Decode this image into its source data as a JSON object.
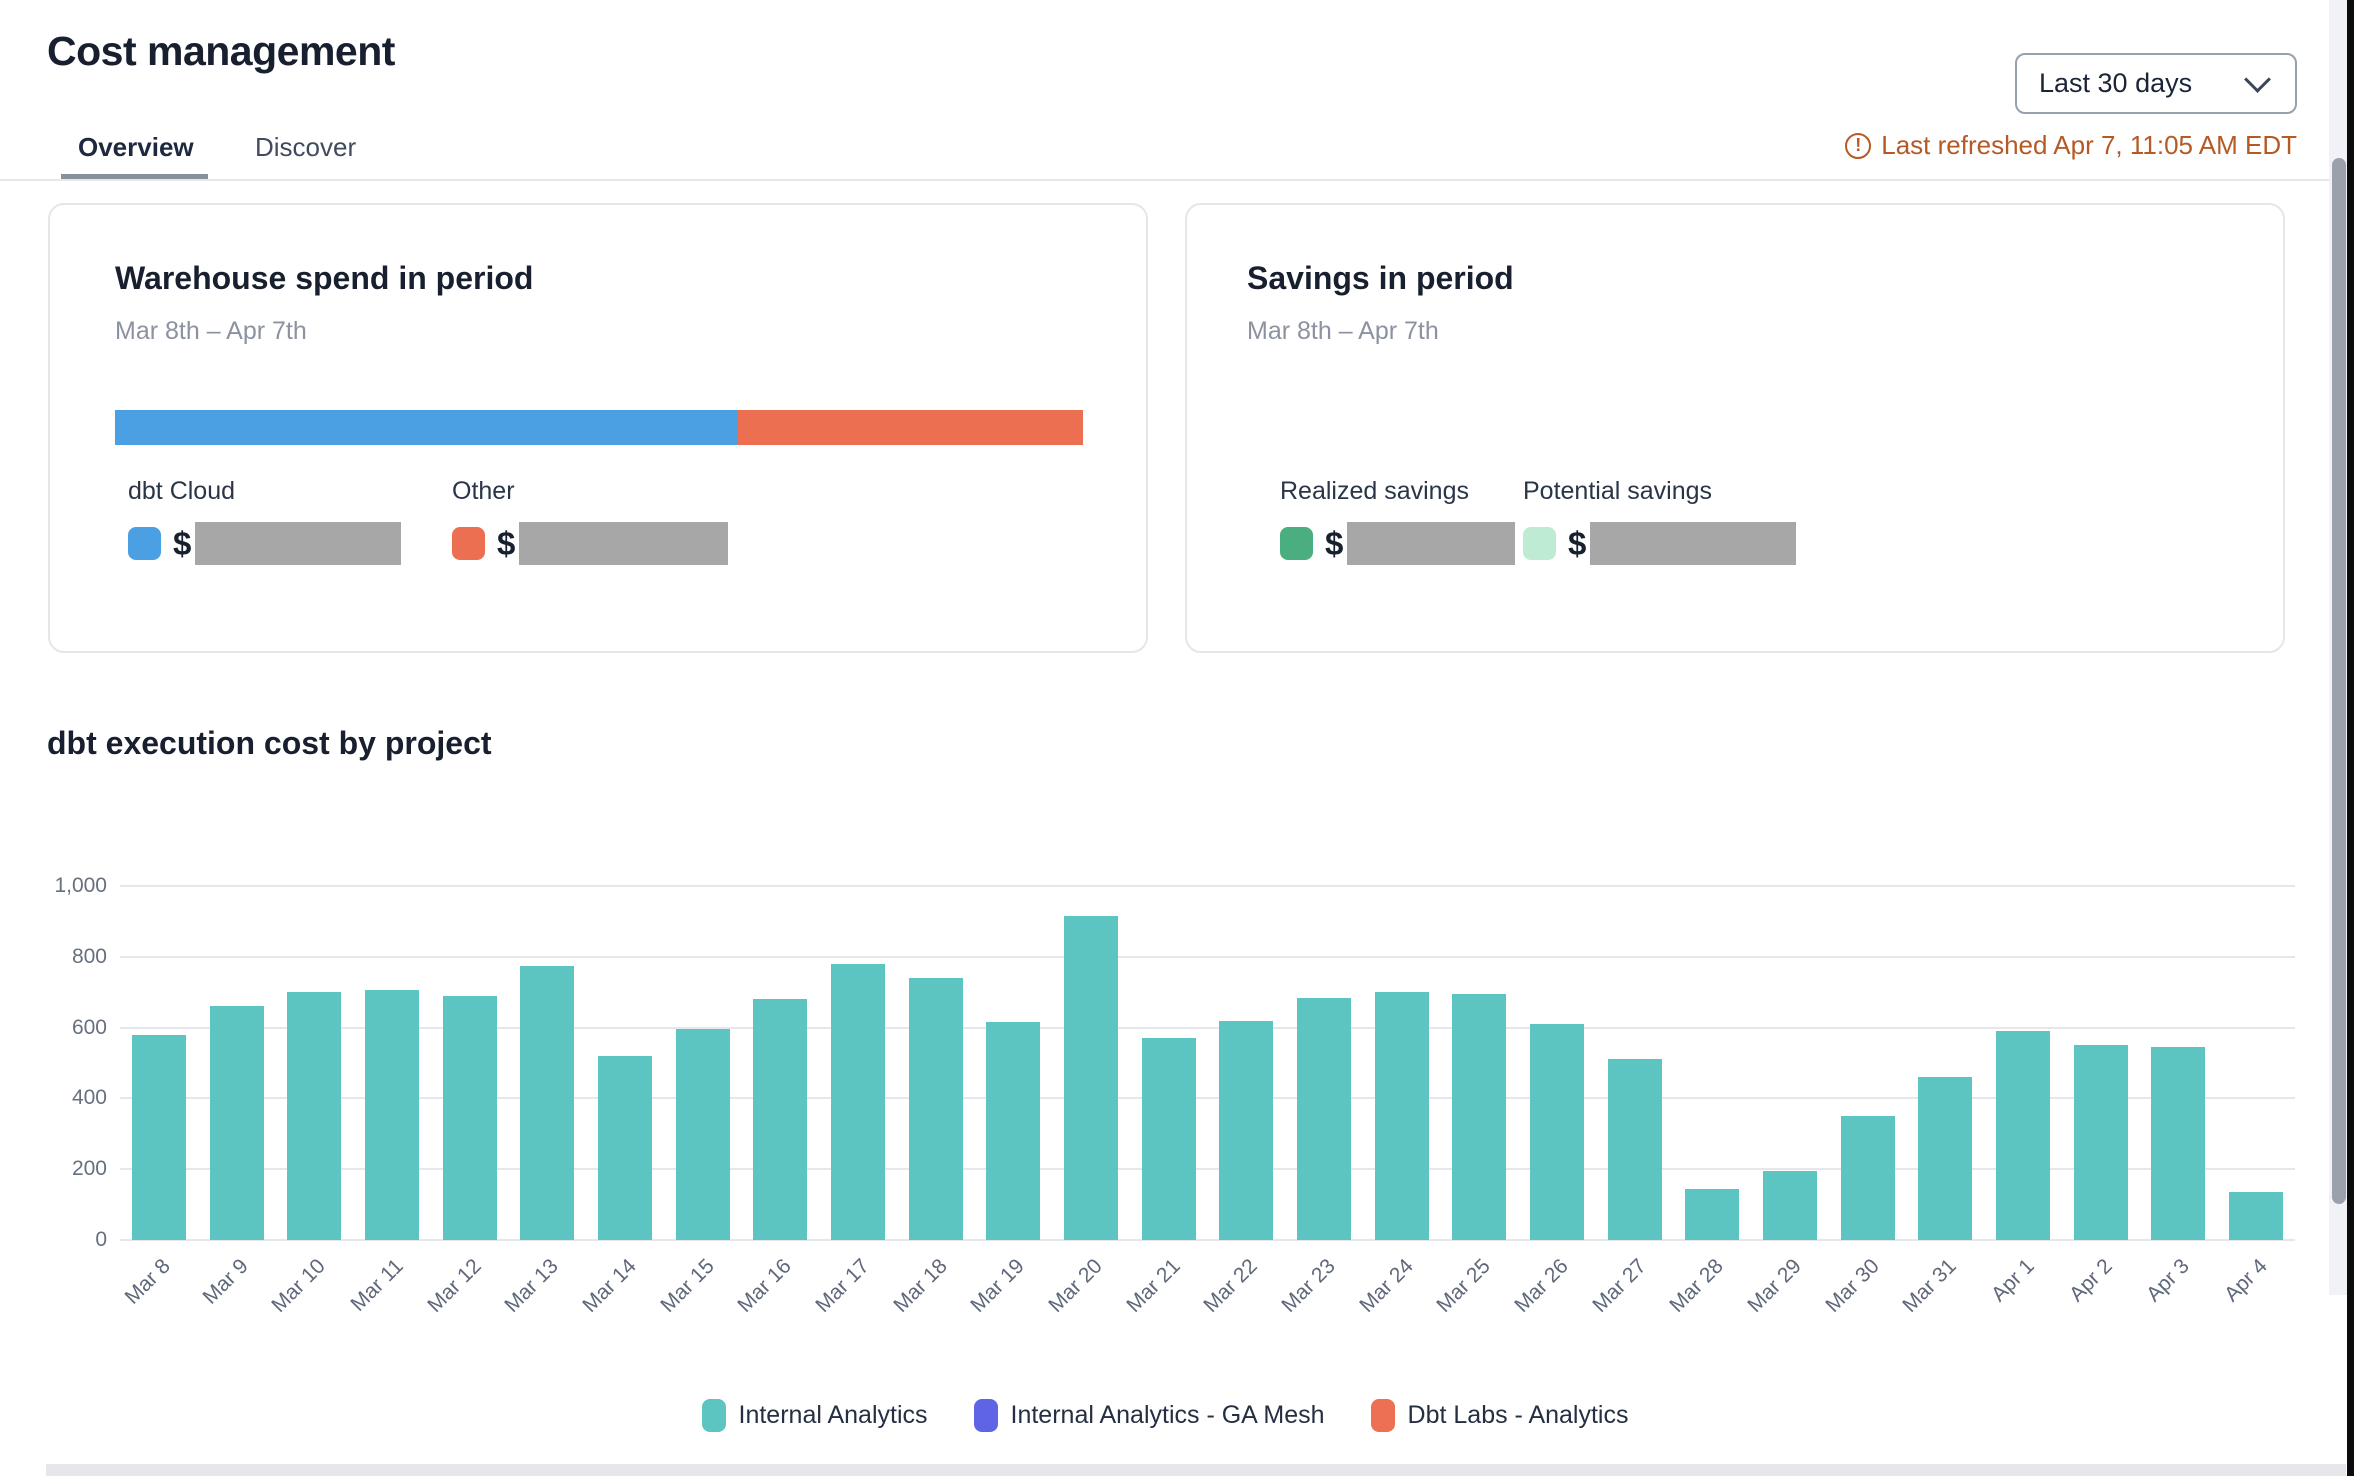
{
  "header": {
    "title": "Cost management",
    "tabs": [
      {
        "label": "Overview",
        "active": true
      },
      {
        "label": "Discover",
        "active": false
      }
    ],
    "date_range": {
      "value": "Last 30 days"
    },
    "last_refreshed": "Last refreshed Apr 7, 11:05 AM EDT",
    "last_refreshed_color": "#b55a25"
  },
  "currency_symbol": "$",
  "cards": {
    "warehouse": {
      "title": "Warehouse spend in period",
      "subtitle": "Mar 8th – Apr 7th",
      "segments": [
        {
          "label": "dbt Cloud",
          "color": "#4aa0e2",
          "pct": 64.4
        },
        {
          "label": "Other",
          "color": "#ed6f51",
          "pct": 35.6
        }
      ],
      "values_redacted": true
    },
    "savings": {
      "title": "Savings in period",
      "subtitle": "Mar 8th – Apr 7th",
      "items": [
        {
          "label": "Realized savings",
          "color": "#4bae80"
        },
        {
          "label": "Potential savings",
          "color": "#bdebd3"
        }
      ],
      "values_redacted": true
    }
  },
  "chart_data": {
    "type": "bar",
    "title": "dbt execution cost by project",
    "categories": [
      "Mar 8",
      "Mar 9",
      "Mar 10",
      "Mar 11",
      "Mar 12",
      "Mar 13",
      "Mar 14",
      "Mar 15",
      "Mar 16",
      "Mar 17",
      "Mar 18",
      "Mar 19",
      "Mar 20",
      "Mar 21",
      "Mar 22",
      "Mar 23",
      "Mar 24",
      "Mar 25",
      "Mar 26",
      "Mar 27",
      "Mar 28",
      "Mar 29",
      "Mar 30",
      "Mar 31",
      "Apr 1",
      "Apr 2",
      "Apr 3",
      "Apr 4"
    ],
    "series": [
      {
        "name": "Internal Analytics",
        "color": "#5cc5c1",
        "values": [
          580,
          660,
          700,
          705,
          690,
          775,
          520,
          595,
          680,
          780,
          740,
          615,
          915,
          570,
          620,
          685,
          700,
          695,
          610,
          510,
          145,
          195,
          350,
          460,
          590,
          550,
          545,
          135
        ]
      },
      {
        "name": "Internal Analytics - GA Mesh",
        "color": "#5f63e5",
        "values": []
      },
      {
        "name": "Dbt Labs - Analytics",
        "color": "#ed7054",
        "values": []
      }
    ],
    "legend": [
      {
        "label": "Internal Analytics",
        "color": "#5cc5c1"
      },
      {
        "label": "Internal Analytics - GA Mesh",
        "color": "#5f63e5"
      },
      {
        "label": "Dbt Labs - Analytics",
        "color": "#ed7054"
      }
    ],
    "yticks": [
      {
        "value": 0,
        "label": "0"
      },
      {
        "value": 200,
        "label": "200"
      },
      {
        "value": 400,
        "label": "400"
      },
      {
        "value": 600,
        "label": "600"
      },
      {
        "value": 800,
        "label": "800"
      },
      {
        "value": 1000,
        "label": "1,000"
      }
    ],
    "ylim": [
      0,
      1000
    ],
    "xlabel": "",
    "ylabel": "",
    "grid": true,
    "legend_position": "bottom"
  }
}
